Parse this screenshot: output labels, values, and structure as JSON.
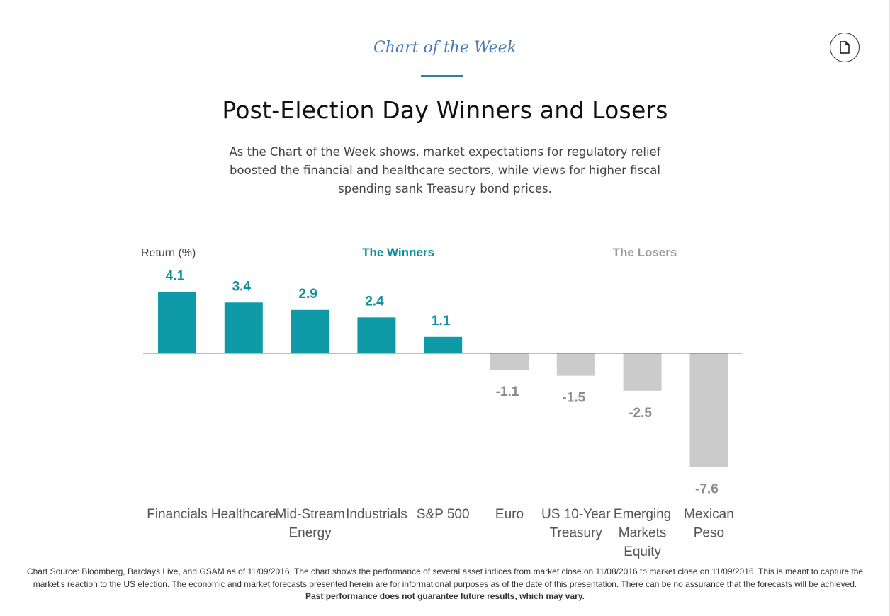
{
  "header": {
    "kicker": "Chart of the Week",
    "title": "Post-Election Day Winners and Losers",
    "intro": "As the Chart of the Week shows, market expectations for regulatory relief boosted the financial and healthcare sectors, while views for higher fiscal spending sank Treasury bond prices.",
    "doc_icon": "document-icon"
  },
  "chart_data": {
    "type": "bar",
    "ylabel": "Return (%)",
    "group_labels": {
      "winners": "The Winners",
      "losers": "The Losers"
    },
    "categories": [
      [
        "Financials"
      ],
      [
        "Healthcare"
      ],
      [
        "Mid-Stream",
        "Energy"
      ],
      [
        "Industrials"
      ],
      [
        "S&P 500"
      ],
      [
        "Euro"
      ],
      [
        "US 10-Year",
        "Treasury"
      ],
      [
        "Emerging",
        "Markets",
        "Equity"
      ],
      [
        "Mexican",
        "Peso"
      ]
    ],
    "values": [
      4.1,
      3.4,
      2.9,
      2.4,
      1.1,
      -1.1,
      -1.5,
      -2.5,
      -7.6
    ],
    "value_labels": [
      "4.1",
      "3.4",
      "2.9",
      "2.4",
      "1.1",
      "-1.1",
      "-1.5",
      "-2.5",
      "-7.6"
    ],
    "colors": {
      "positive": "#0e9aa7",
      "negative": "#cbcbcb",
      "positive_label": "#0e8fa0",
      "negative_label": "#8a8a8a",
      "category_label": "#555555",
      "axis": "#777777"
    },
    "grid": false
  },
  "footnote": {
    "text": "Chart Source: Bloomberg, Barclays Live, and GSAM as of 11/09/2016. The chart shows the performance of several asset indices from market close on 11/08/2016 to market close on 11/09/2016. This is meant to capture the market's reaction to the US election. The economic and market forecasts presented herein are for informational purposes as of the date of this presentation. There can be no assurance that the forecasts will be achieved.",
    "bold": "Past performance does not guarantee future results, which may vary."
  }
}
